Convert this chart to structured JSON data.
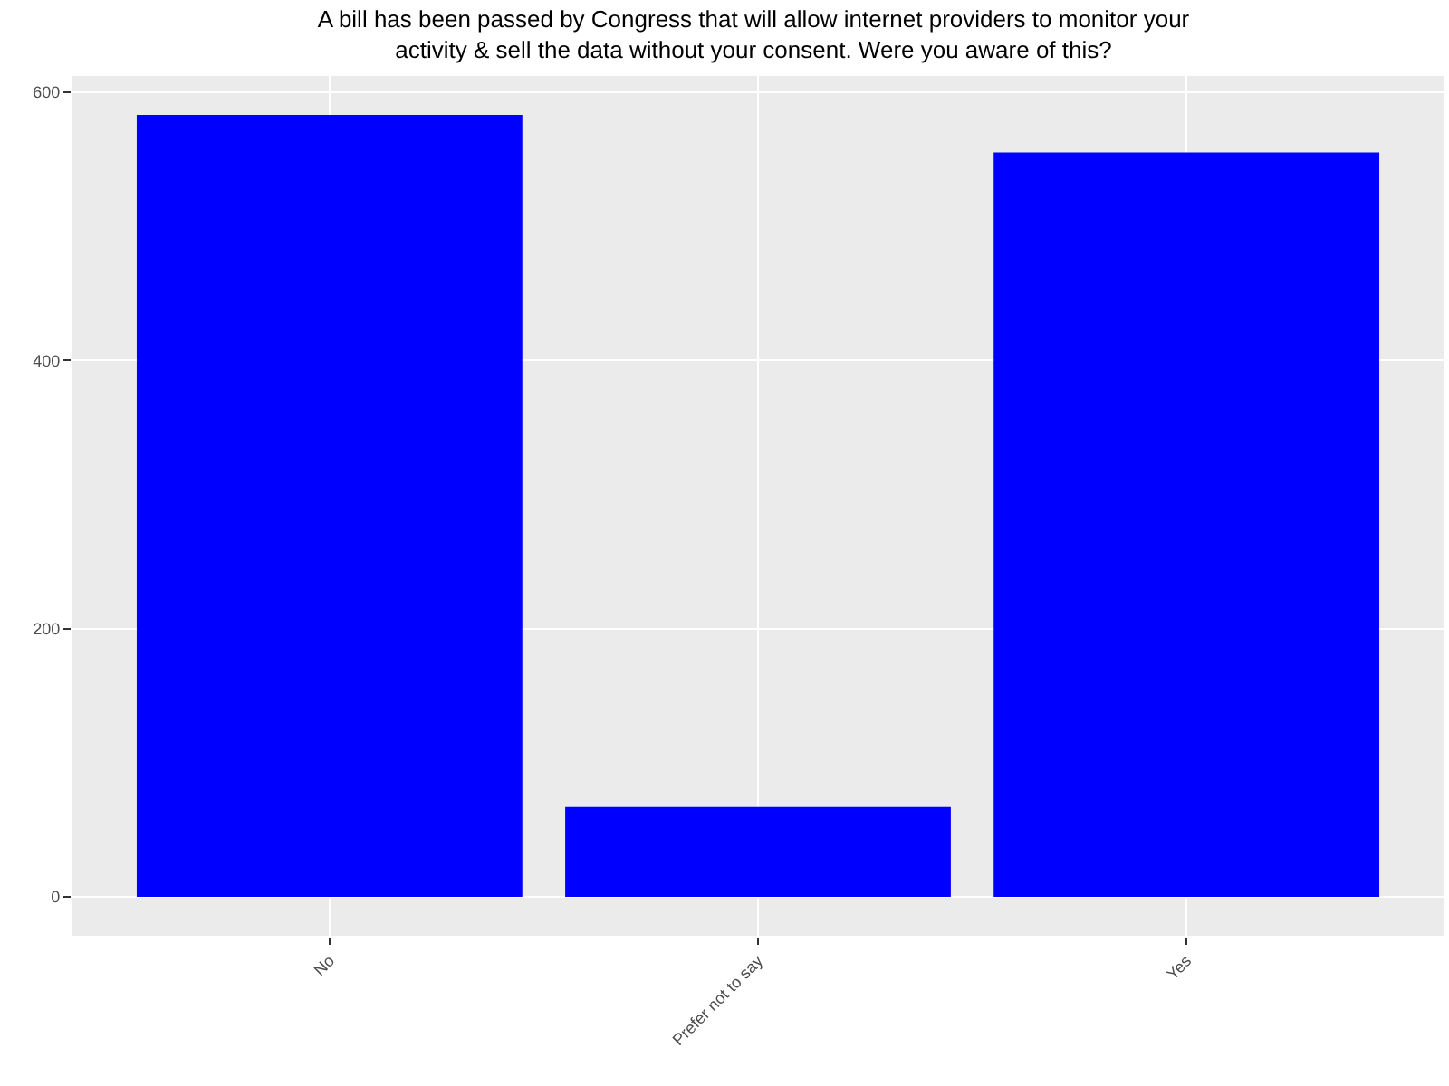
{
  "chart_data": {
    "type": "bar",
    "title": "A bill has been passed by Congress that will allow internet providers to monitor your\nactivity & sell the data without your consent. Were you aware of this?",
    "categories": [
      "No",
      "Prefer not to say",
      "Yes"
    ],
    "values": [
      583,
      67,
      555
    ],
    "color": "#0000ff",
    "ylim": [
      -29,
      612
    ],
    "yticks": [
      0,
      200,
      400,
      600
    ],
    "grid": true
  }
}
